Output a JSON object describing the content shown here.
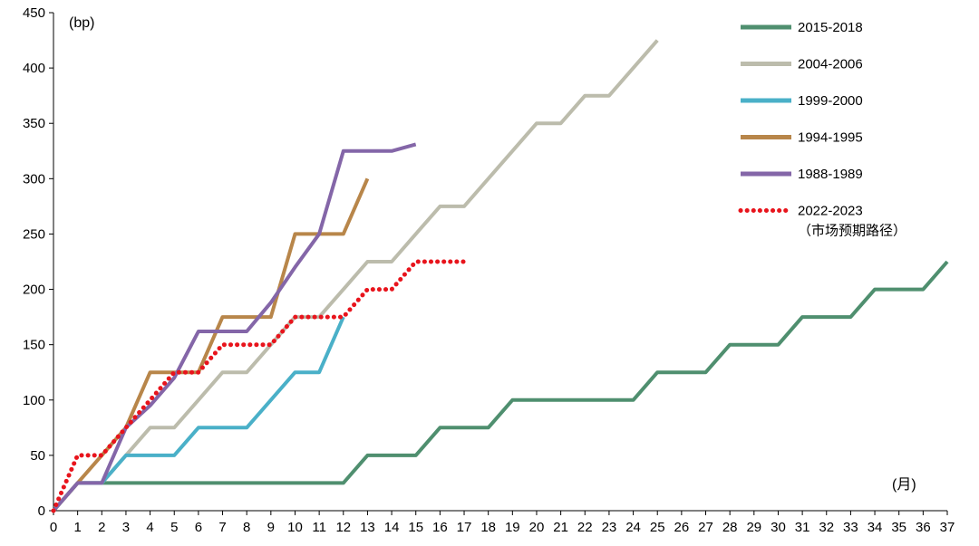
{
  "chart_data": {
    "type": "line",
    "title": "",
    "ylabel": "(bp)",
    "xlabel": "(月)",
    "xlim": [
      0,
      37
    ],
    "ylim": [
      0,
      450
    ],
    "yticks": [
      0,
      50,
      100,
      150,
      200,
      250,
      300,
      350,
      400,
      450
    ],
    "xticks": [
      0,
      1,
      2,
      3,
      4,
      5,
      6,
      7,
      8,
      9,
      10,
      11,
      12,
      13,
      14,
      15,
      16,
      17,
      18,
      19,
      20,
      21,
      22,
      23,
      24,
      25,
      26,
      27,
      28,
      29,
      30,
      31,
      32,
      33,
      34,
      35,
      36,
      37
    ],
    "legend_position": "top-right",
    "grid": false,
    "series": [
      {
        "name": "2015-2018",
        "color": "#4f8f6f",
        "style": "solid",
        "points": [
          [
            0,
            0
          ],
          [
            1,
            25
          ],
          [
            12,
            25
          ],
          [
            13,
            50
          ],
          [
            15,
            50
          ],
          [
            16,
            75
          ],
          [
            18,
            75
          ],
          [
            19,
            100
          ],
          [
            24,
            100
          ],
          [
            25,
            125
          ],
          [
            27,
            125
          ],
          [
            28,
            150
          ],
          [
            30,
            150
          ],
          [
            31,
            175
          ],
          [
            33,
            175
          ],
          [
            34,
            200
          ],
          [
            36,
            200
          ],
          [
            37,
            225
          ]
        ]
      },
      {
        "name": "2004-2006",
        "color": "#bcbcac",
        "style": "solid",
        "points": [
          [
            0,
            0
          ],
          [
            1,
            25
          ],
          [
            2,
            25
          ],
          [
            3,
            50
          ],
          [
            4,
            75
          ],
          [
            5,
            75
          ],
          [
            6,
            100
          ],
          [
            7,
            125
          ],
          [
            8,
            125
          ],
          [
            9,
            150
          ],
          [
            10,
            175
          ],
          [
            11,
            175
          ],
          [
            12,
            200
          ],
          [
            13,
            225
          ],
          [
            14,
            225
          ],
          [
            15,
            250
          ],
          [
            16,
            275
          ],
          [
            17,
            275
          ],
          [
            18,
            300
          ],
          [
            19,
            325
          ],
          [
            20,
            350
          ],
          [
            21,
            350
          ],
          [
            22,
            375
          ],
          [
            23,
            375
          ],
          [
            24,
            400
          ],
          [
            25,
            425
          ]
        ]
      },
      {
        "name": "1999-2000",
        "color": "#4ab0c8",
        "style": "solid",
        "points": [
          [
            0,
            0
          ],
          [
            1,
            25
          ],
          [
            2,
            25
          ],
          [
            3,
            50
          ],
          [
            5,
            50
          ],
          [
            6,
            75
          ],
          [
            8,
            75
          ],
          [
            9,
            100
          ],
          [
            10,
            125
          ],
          [
            11,
            125
          ],
          [
            12,
            175
          ]
        ]
      },
      {
        "name": "1994-1995",
        "color": "#b8864a",
        "style": "solid",
        "points": [
          [
            0,
            0
          ],
          [
            1,
            25
          ],
          [
            2,
            50
          ],
          [
            3,
            75
          ],
          [
            4,
            125
          ],
          [
            5,
            125
          ],
          [
            6,
            125
          ],
          [
            7,
            175
          ],
          [
            9,
            175
          ],
          [
            10,
            250
          ],
          [
            12,
            250
          ],
          [
            13,
            300
          ]
        ]
      },
      {
        "name": "1988-1989",
        "color": "#8466a8",
        "style": "solid",
        "points": [
          [
            0,
            0
          ],
          [
            1,
            25
          ],
          [
            2,
            25
          ],
          [
            3,
            75
          ],
          [
            4,
            95
          ],
          [
            5,
            120
          ],
          [
            6,
            162
          ],
          [
            8,
            162
          ],
          [
            9,
            188
          ],
          [
            10,
            220
          ],
          [
            11,
            250
          ],
          [
            12,
            325
          ],
          [
            14,
            325
          ],
          [
            15,
            331
          ]
        ]
      },
      {
        "name": "2022-2023",
        "name_line2": "（市场预期路径）",
        "color": "#e8141c",
        "style": "dotted",
        "points": [
          [
            0,
            0
          ],
          [
            1,
            50
          ],
          [
            2,
            50
          ],
          [
            3,
            75
          ],
          [
            4,
            100
          ],
          [
            5,
            125
          ],
          [
            6,
            125
          ],
          [
            7,
            150
          ],
          [
            9,
            150
          ],
          [
            10,
            175
          ],
          [
            12,
            175
          ],
          [
            13,
            200
          ],
          [
            14,
            200
          ],
          [
            15,
            225
          ],
          [
            17,
            225
          ]
        ]
      }
    ]
  }
}
